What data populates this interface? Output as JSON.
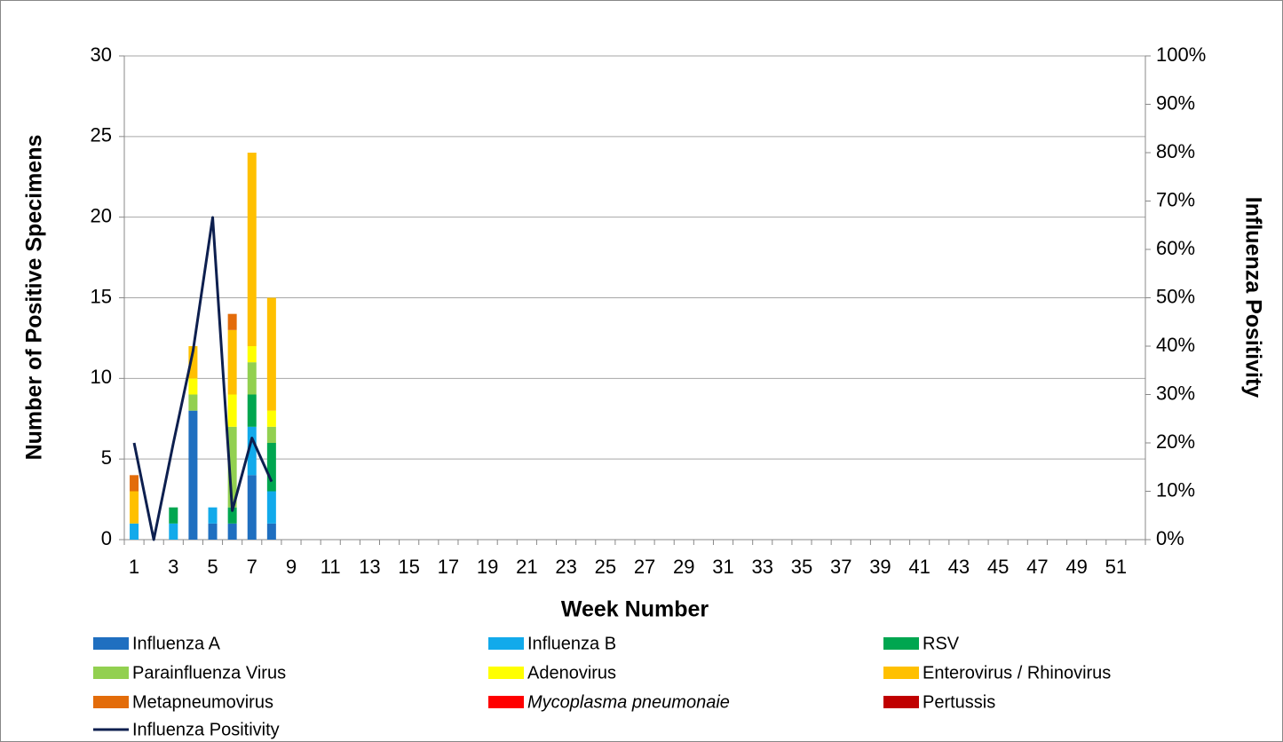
{
  "chart_data": {
    "type": "bar",
    "x_label": "Week Number",
    "y_label": "Number of Positive Specimens",
    "y2_label": "Influenza Positivity",
    "categories": [
      "1",
      null,
      "3",
      null,
      "5",
      null,
      "7",
      null,
      "9",
      null,
      "11",
      null,
      "13",
      null,
      "15",
      null,
      "17",
      null,
      "19",
      null,
      "21",
      null,
      "23",
      null,
      "25",
      null,
      "27",
      null,
      "29",
      null,
      "31",
      null,
      "33",
      null,
      "35",
      null,
      "37",
      null,
      "39",
      null,
      "41",
      null,
      "43",
      null,
      "45",
      null,
      "47",
      null,
      "49",
      null,
      "51",
      null
    ],
    "stacked": true,
    "grid": true,
    "ylim": [
      0,
      30
    ],
    "yticks": [
      0,
      5,
      10,
      15,
      20,
      25,
      30
    ],
    "y2lim": [
      0,
      100
    ],
    "y2ticks": [
      {
        "value": 0,
        "label": "0%"
      },
      {
        "value": 10,
        "label": "10%"
      },
      {
        "value": 20,
        "label": "20%"
      },
      {
        "value": 30,
        "label": "30%"
      },
      {
        "value": 40,
        "label": "40%"
      },
      {
        "value": 50,
        "label": "50%"
      },
      {
        "value": 60,
        "label": "60%"
      },
      {
        "value": 70,
        "label": "70%"
      },
      {
        "value": 80,
        "label": "80%"
      },
      {
        "value": 90,
        "label": "90%"
      },
      {
        "value": 100,
        "label": "100%"
      }
    ],
    "series": [
      {
        "name": "Influenza A",
        "type": "bar",
        "color": "#1f6fc0",
        "values": [
          0,
          0,
          0,
          8,
          1,
          1,
          4,
          1,
          null,
          null,
          null,
          null,
          null,
          null,
          null,
          null,
          null,
          null,
          null,
          null,
          null,
          null,
          null,
          null,
          null,
          null,
          null,
          null,
          null,
          null,
          null,
          null,
          null,
          null,
          null,
          null,
          null,
          null,
          null,
          null,
          null,
          null,
          null,
          null,
          null,
          null,
          null,
          null,
          null,
          null,
          null,
          null
        ]
      },
      {
        "name": "Influenza B",
        "type": "bar",
        "color": "#12aaeb",
        "values": [
          1,
          0,
          1,
          0,
          1,
          0,
          3,
          2,
          null,
          null,
          null,
          null,
          null,
          null,
          null,
          null,
          null,
          null,
          null,
          null,
          null,
          null,
          null,
          null,
          null,
          null,
          null,
          null,
          null,
          null,
          null,
          null,
          null,
          null,
          null,
          null,
          null,
          null,
          null,
          null,
          null,
          null,
          null,
          null,
          null,
          null,
          null,
          null,
          null,
          null,
          null,
          null
        ]
      },
      {
        "name": "RSV",
        "type": "bar",
        "color": "#00a650",
        "values": [
          0,
          0,
          1,
          0,
          0,
          1,
          2,
          3,
          null,
          null,
          null,
          null,
          null,
          null,
          null,
          null,
          null,
          null,
          null,
          null,
          null,
          null,
          null,
          null,
          null,
          null,
          null,
          null,
          null,
          null,
          null,
          null,
          null,
          null,
          null,
          null,
          null,
          null,
          null,
          null,
          null,
          null,
          null,
          null,
          null,
          null,
          null,
          null,
          null,
          null,
          null,
          null
        ]
      },
      {
        "name": "Parainfluenza Virus",
        "type": "bar",
        "color": "#92d050",
        "values": [
          0,
          0,
          0,
          1,
          0,
          5,
          2,
          1,
          null,
          null,
          null,
          null,
          null,
          null,
          null,
          null,
          null,
          null,
          null,
          null,
          null,
          null,
          null,
          null,
          null,
          null,
          null,
          null,
          null,
          null,
          null,
          null,
          null,
          null,
          null,
          null,
          null,
          null,
          null,
          null,
          null,
          null,
          null,
          null,
          null,
          null,
          null,
          null,
          null,
          null,
          null,
          null
        ]
      },
      {
        "name": "Adenovirus",
        "type": "bar",
        "color": "#ffff00",
        "values": [
          0,
          0,
          0,
          1,
          0,
          2,
          1,
          1,
          null,
          null,
          null,
          null,
          null,
          null,
          null,
          null,
          null,
          null,
          null,
          null,
          null,
          null,
          null,
          null,
          null,
          null,
          null,
          null,
          null,
          null,
          null,
          null,
          null,
          null,
          null,
          null,
          null,
          null,
          null,
          null,
          null,
          null,
          null,
          null,
          null,
          null,
          null,
          null,
          null,
          null,
          null,
          null
        ]
      },
      {
        "name": "Enterovirus / Rhinovirus",
        "type": "bar",
        "color": "#ffc000",
        "values": [
          2,
          0,
          0,
          2,
          0,
          4,
          12,
          7,
          null,
          null,
          null,
          null,
          null,
          null,
          null,
          null,
          null,
          null,
          null,
          null,
          null,
          null,
          null,
          null,
          null,
          null,
          null,
          null,
          null,
          null,
          null,
          null,
          null,
          null,
          null,
          null,
          null,
          null,
          null,
          null,
          null,
          null,
          null,
          null,
          null,
          null,
          null,
          null,
          null,
          null,
          null,
          null
        ]
      },
      {
        "name": "Metapneumovirus",
        "type": "bar",
        "color": "#e36c0a",
        "values": [
          1,
          0,
          0,
          0,
          0,
          1,
          0,
          0,
          null,
          null,
          null,
          null,
          null,
          null,
          null,
          null,
          null,
          null,
          null,
          null,
          null,
          null,
          null,
          null,
          null,
          null,
          null,
          null,
          null,
          null,
          null,
          null,
          null,
          null,
          null,
          null,
          null,
          null,
          null,
          null,
          null,
          null,
          null,
          null,
          null,
          null,
          null,
          null,
          null,
          null,
          null,
          null
        ]
      },
      {
        "name": "Mycoplasma pneumonaie",
        "type": "bar",
        "color": "#ff0000",
        "italic": true,
        "values": [
          0,
          0,
          0,
          0,
          0,
          0,
          0,
          0,
          null,
          null,
          null,
          null,
          null,
          null,
          null,
          null,
          null,
          null,
          null,
          null,
          null,
          null,
          null,
          null,
          null,
          null,
          null,
          null,
          null,
          null,
          null,
          null,
          null,
          null,
          null,
          null,
          null,
          null,
          null,
          null,
          null,
          null,
          null,
          null,
          null,
          null,
          null,
          null,
          null,
          null,
          null,
          null
        ]
      },
      {
        "name": "Pertussis",
        "type": "bar",
        "color": "#c00000",
        "values": [
          0,
          0,
          0,
          0,
          0,
          0,
          0,
          0,
          null,
          null,
          null,
          null,
          null,
          null,
          null,
          null,
          null,
          null,
          null,
          null,
          null,
          null,
          null,
          null,
          null,
          null,
          null,
          null,
          null,
          null,
          null,
          null,
          null,
          null,
          null,
          null,
          null,
          null,
          null,
          null,
          null,
          null,
          null,
          null,
          null,
          null,
          null,
          null,
          null,
          null,
          null,
          null
        ]
      },
      {
        "name": "Influenza Positivity",
        "type": "line",
        "axis": "y2",
        "color": "#0d1f4f",
        "values": [
          20,
          0,
          20,
          39,
          66.6,
          6,
          21,
          12,
          null,
          null,
          null,
          null,
          null,
          null,
          null,
          null,
          null,
          null,
          null,
          null,
          null,
          null,
          null,
          null,
          null,
          null,
          null,
          null,
          null,
          null,
          null,
          null,
          null,
          null,
          null,
          null,
          null,
          null,
          null,
          null,
          null,
          null,
          null,
          null,
          null,
          null,
          null,
          null,
          null,
          null,
          null,
          null
        ]
      }
    ]
  }
}
